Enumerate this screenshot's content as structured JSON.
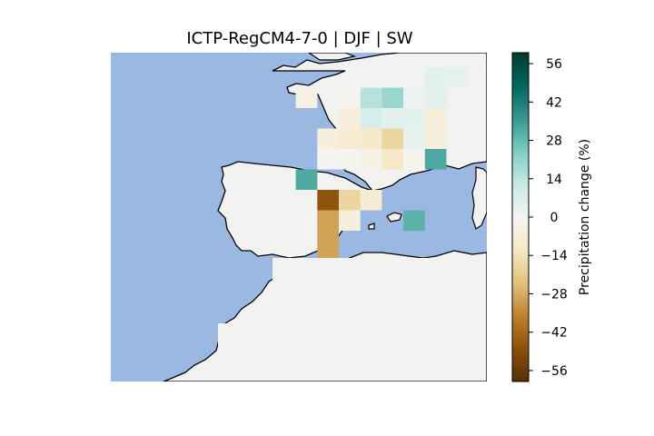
{
  "chart_data": {
    "type": "heatmap",
    "title": "ICTP-RegCM4-7-0 | DJF | SW",
    "colorbar": {
      "label": "Precipitation change (%)",
      "ticks": [
        56,
        42,
        28,
        14,
        0,
        -14,
        -28,
        -42,
        -56
      ],
      "tick_labels": [
        "56",
        "42",
        "28",
        "14",
        "0",
        "−14",
        "−28",
        "−42",
        "−56"
      ],
      "range": [
        -60,
        60
      ],
      "colormap": "BrBG"
    },
    "map": {
      "region": "SW",
      "description_colors": {
        "ocean": "#9bb8e3",
        "land_no_data": "#f2f3f1",
        "coast": "#000000"
      }
    },
    "cells": [
      {
        "col": 14,
        "row": 0,
        "value": 5
      },
      {
        "col": 15,
        "row": 0,
        "value": 4
      },
      {
        "col": 8,
        "row": 1,
        "value": -4
      },
      {
        "col": 10,
        "row": 1,
        "value": -1
      },
      {
        "col": 11,
        "row": 1,
        "value": 15
      },
      {
        "col": 12,
        "row": 1,
        "value": 20
      },
      {
        "col": 13,
        "row": 1,
        "value": 2
      },
      {
        "col": 14,
        "row": 1,
        "value": 5
      },
      {
        "col": 10,
        "row": 2,
        "value": -6
      },
      {
        "col": 11,
        "row": 2,
        "value": 8
      },
      {
        "col": 12,
        "row": 2,
        "value": 5
      },
      {
        "col": 13,
        "row": 2,
        "value": 5
      },
      {
        "col": 14,
        "row": 2,
        "value": -7
      },
      {
        "col": 9,
        "row": 3,
        "value": -6
      },
      {
        "col": 10,
        "row": 3,
        "value": -8
      },
      {
        "col": 11,
        "row": 3,
        "value": -10
      },
      {
        "col": 12,
        "row": 3,
        "value": -18
      },
      {
        "col": 13,
        "row": 3,
        "value": 4
      },
      {
        "col": 14,
        "row": 3,
        "value": -6
      },
      {
        "col": 9,
        "row": 4,
        "value": -1
      },
      {
        "col": 10,
        "row": 4,
        "value": -1
      },
      {
        "col": 11,
        "row": 4,
        "value": -4
      },
      {
        "col": 12,
        "row": 4,
        "value": -11
      },
      {
        "col": 13,
        "row": 4,
        "value": -2
      },
      {
        "col": 14,
        "row": 4,
        "value": 32
      },
      {
        "col": 8,
        "row": 5,
        "value": 32
      },
      {
        "col": 9,
        "row": 6,
        "value": -47
      },
      {
        "col": 10,
        "row": 6,
        "value": -18
      },
      {
        "col": 11,
        "row": 6,
        "value": -8
      },
      {
        "col": 9,
        "row": 7,
        "value": -30
      },
      {
        "col": 10,
        "row": 7,
        "value": -6
      },
      {
        "col": 9,
        "row": 8,
        "value": -30
      },
      {
        "col": 9,
        "row": 9,
        "value": -30
      },
      {
        "col": 9,
        "row": 10,
        "value": -4
      },
      {
        "col": 13,
        "row": 7,
        "value": 30
      }
    ]
  }
}
